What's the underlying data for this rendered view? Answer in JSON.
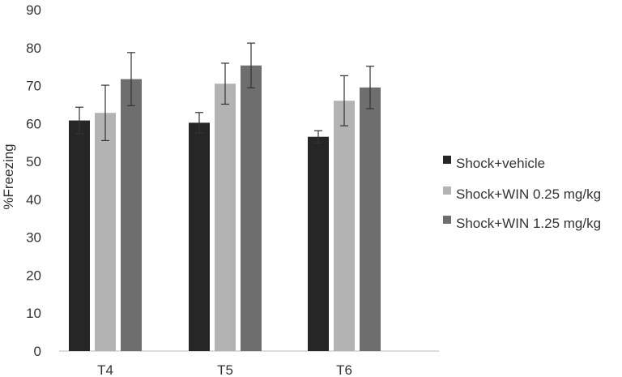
{
  "chart_data": {
    "type": "bar",
    "title": "",
    "xlabel": "",
    "ylabel": "%Freezing",
    "ylim": [
      0,
      90
    ],
    "yticks": [
      0,
      10,
      20,
      30,
      40,
      50,
      60,
      70,
      80,
      90
    ],
    "grid": false,
    "legend_position": "right",
    "categories": [
      "T4",
      "T5",
      "T6"
    ],
    "series": [
      {
        "name": "Shock+vehicle",
        "color": "#262626",
        "values": [
          60.8,
          60.2,
          56.5
        ],
        "errors": [
          3.5,
          2.7,
          1.6
        ]
      },
      {
        "name": "Shock+WIN 0.25 mg/kg",
        "color": "#b3b3b3",
        "values": [
          62.8,
          70.5,
          66.0
        ],
        "errors": [
          7.3,
          5.4,
          6.6
        ]
      },
      {
        "name": "Shock+WIN 1.25 mg/kg",
        "color": "#6e6e6e",
        "values": [
          71.7,
          75.3,
          69.5
        ],
        "errors": [
          7.0,
          5.9,
          5.6
        ]
      }
    ]
  }
}
